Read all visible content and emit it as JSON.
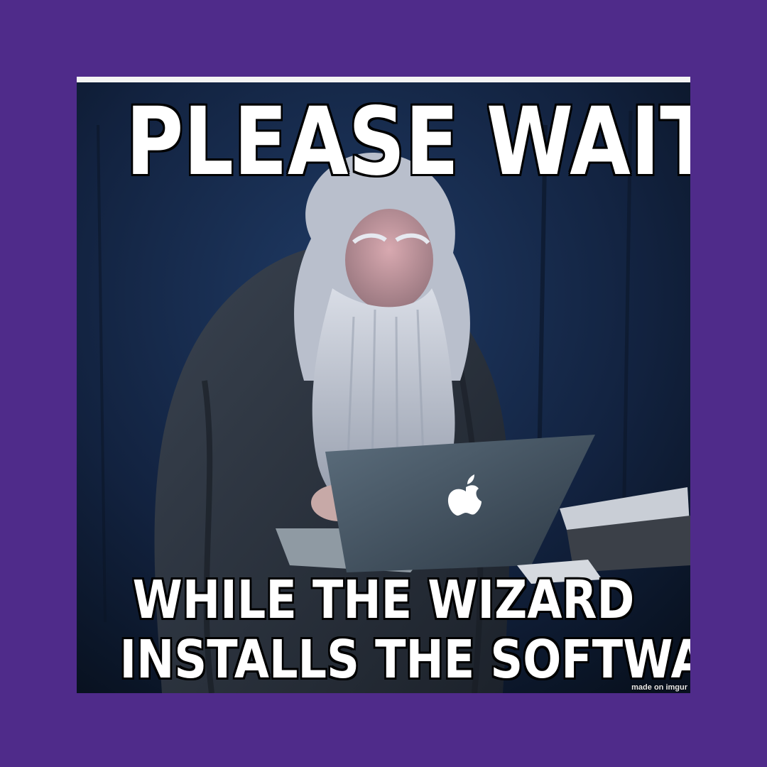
{
  "meme": {
    "top_text": "PLEASE WAIT",
    "bottom_text_line1": "WHILE THE WIZARD",
    "bottom_text_line2": "INSTALLS THE SOFTWARE",
    "watermark": "made on imgur"
  },
  "colors": {
    "page_background": "#4f2b8a",
    "caption_text": "#ffffff",
    "caption_outline": "#000000",
    "scene_background": "#0d1a30"
  },
  "icons": {
    "laptop_logo": "apple-logo-icon"
  }
}
